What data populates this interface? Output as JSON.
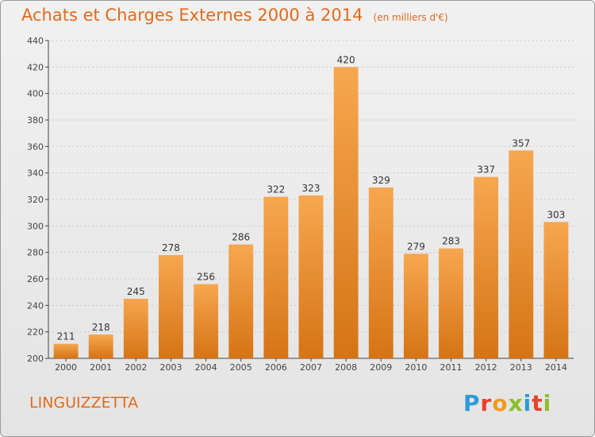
{
  "title": "Achats et Charges Externes 2000 à 2014",
  "unit": "(en milliers d'€)",
  "commune": "LINGUIZZETTA",
  "brand": {
    "text": "Proxiti",
    "letters": [
      {
        "ch": "P",
        "color": "#2e9ad6"
      },
      {
        "ch": "r",
        "color": "#e8412c"
      },
      {
        "ch": "o",
        "color": "#f29a1f"
      },
      {
        "ch": "x",
        "color": "#8bbf2a"
      },
      {
        "ch": "i",
        "color": "#2e9ad6"
      },
      {
        "ch": "t",
        "color": "#e8412c"
      },
      {
        "ch": "i",
        "color": "#8bbf2a"
      }
    ]
  },
  "colors": {
    "accent": "#e26a1a",
    "bar_top": "#f7a750",
    "bar_bottom": "#d57415"
  },
  "chart_data": {
    "type": "bar",
    "categories": [
      "2000",
      "2001",
      "2002",
      "2003",
      "2004",
      "2005",
      "2006",
      "2007",
      "2008",
      "2009",
      "2010",
      "2011",
      "2012",
      "2013",
      "2014"
    ],
    "values": [
      211,
      218,
      245,
      278,
      256,
      286,
      322,
      323,
      420,
      329,
      279,
      283,
      337,
      357,
      303
    ],
    "ylim": [
      200,
      440
    ],
    "yticks": [
      200,
      220,
      240,
      260,
      280,
      300,
      320,
      340,
      360,
      380,
      400,
      420,
      440
    ],
    "grid": true
  }
}
